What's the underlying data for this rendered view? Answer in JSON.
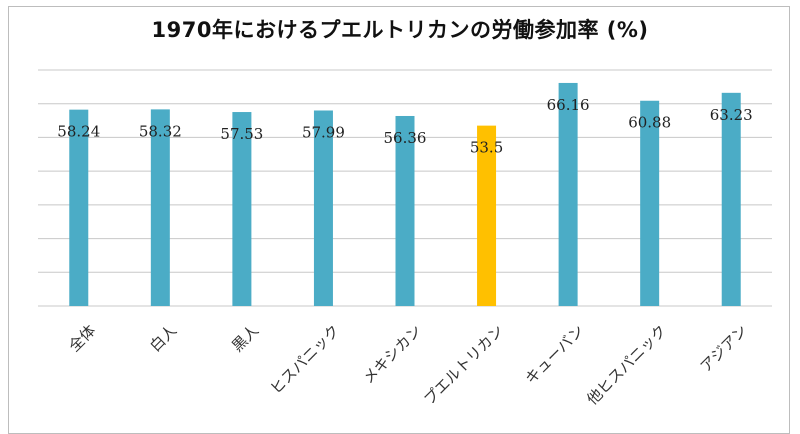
{
  "chart_data": {
    "type": "bar",
    "title": "1970年におけるプエルトリカンの労働参加率 (%)",
    "categories": [
      "全体",
      "白人",
      "黒人",
      "ヒスパニック",
      "メキシカン",
      "プエルトリカン",
      "キューバン",
      "他ヒスパニック",
      "アジアン"
    ],
    "values": [
      58.24,
      58.32,
      57.53,
      57.99,
      56.36,
      53.5,
      66.16,
      60.88,
      63.23
    ],
    "value_labels": [
      "58.24",
      "58.32",
      "57.53",
      "57.99",
      "56.36",
      "53.5",
      "66.16",
      "60.88",
      "63.23"
    ],
    "highlight_index": 5,
    "colors": {
      "bar": "#4bacc6",
      "highlight": "#ffc000",
      "grid": "#c8c8c8"
    },
    "ylim": [
      0,
      70
    ],
    "grid": true
  }
}
